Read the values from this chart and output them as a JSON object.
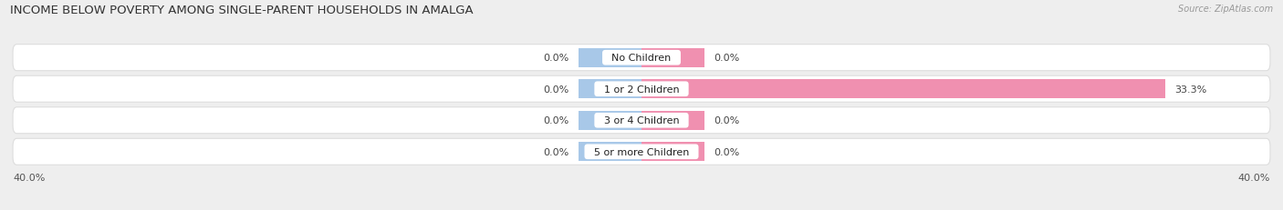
{
  "title": "INCOME BELOW POVERTY AMONG SINGLE-PARENT HOUSEHOLDS IN AMALGA",
  "source": "Source: ZipAtlas.com",
  "categories": [
    "No Children",
    "1 or 2 Children",
    "3 or 4 Children",
    "5 or more Children"
  ],
  "single_father": [
    0.0,
    0.0,
    0.0,
    0.0
  ],
  "single_mother": [
    0.0,
    33.3,
    0.0,
    0.0
  ],
  "x_min": -40.0,
  "x_max": 40.0,
  "father_color": "#a8c8e8",
  "mother_color": "#f090b0",
  "background_color": "#eeeeee",
  "row_bg_color": "#f8f8f8",
  "title_fontsize": 9.5,
  "label_fontsize": 8,
  "val_fontsize": 8,
  "tick_fontsize": 8,
  "legend_fontsize": 8,
  "source_fontsize": 7,
  "bar_height": 0.6,
  "tiny_bar": 4.0
}
